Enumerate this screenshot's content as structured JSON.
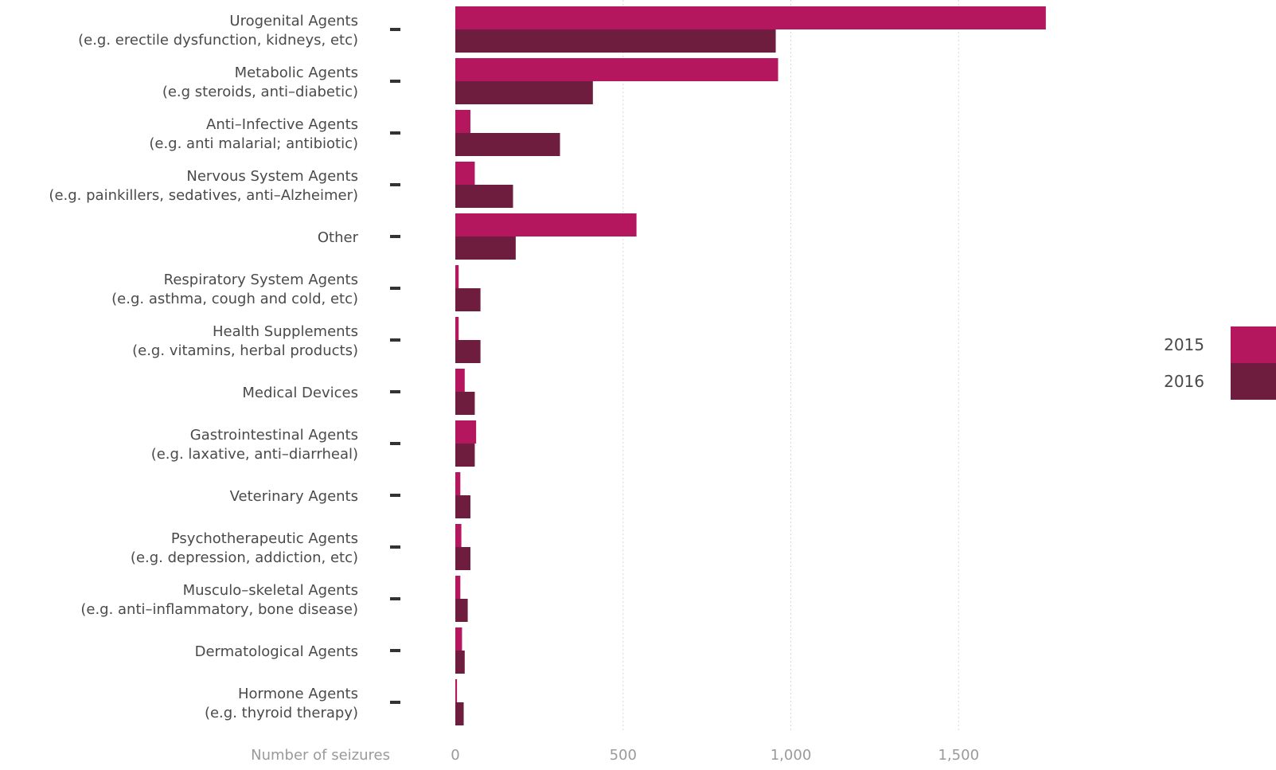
{
  "chart_data": {
    "type": "bar",
    "orientation": "horizontal",
    "categories": [
      [
        "Urogenital Agents",
        "(e.g. erectile dysfunction, kidneys, etc)"
      ],
      [
        "Metabolic Agents",
        "(e.g steroids, anti–diabetic)"
      ],
      [
        "Anti–Infective Agents",
        "(e.g. anti malarial; antibiotic)"
      ],
      [
        "Nervous System Agents",
        "(e.g. painkillers, sedatives, anti–Alzheimer)"
      ],
      [
        "Other"
      ],
      [
        "Respiratory System Agents",
        "(e.g. asthma, cough and cold, etc)"
      ],
      [
        "Health Supplements",
        "(e.g. vitamins, herbal products)"
      ],
      [
        "Medical Devices"
      ],
      [
        "Gastrointestinal Agents",
        "(e.g. laxative, anti–diarrheal)"
      ],
      [
        "Veterinary Agents"
      ],
      [
        "Psychotherapeutic Agents",
        "(e.g. depression, addiction, etc)"
      ],
      [
        "Musculo–skeletal Agents",
        "(e.g. anti–inflammatory, bone disease)"
      ],
      [
        "Dermatological Agents"
      ],
      [
        "Hormone Agents",
        "(e.g. thyroid therapy)"
      ]
    ],
    "series": [
      {
        "name": "2015",
        "color": "#b5175f",
        "values": [
          1760,
          962,
          45,
          58,
          540,
          10,
          10,
          28,
          62,
          15,
          18,
          15,
          20,
          5
        ]
      },
      {
        "name": "2016",
        "color": "#6e1d3f",
        "values": [
          955,
          410,
          312,
          172,
          180,
          75,
          75,
          58,
          58,
          45,
          45,
          37,
          28,
          25
        ]
      }
    ],
    "xlabel": "Number of seizures",
    "xlim": [
      0,
      1750
    ],
    "xticks": [
      0,
      500,
      1000,
      1500
    ],
    "xtick_labels": [
      "0",
      "500",
      "1,000",
      "1,500"
    ],
    "grid": true,
    "legend_position": "right"
  }
}
